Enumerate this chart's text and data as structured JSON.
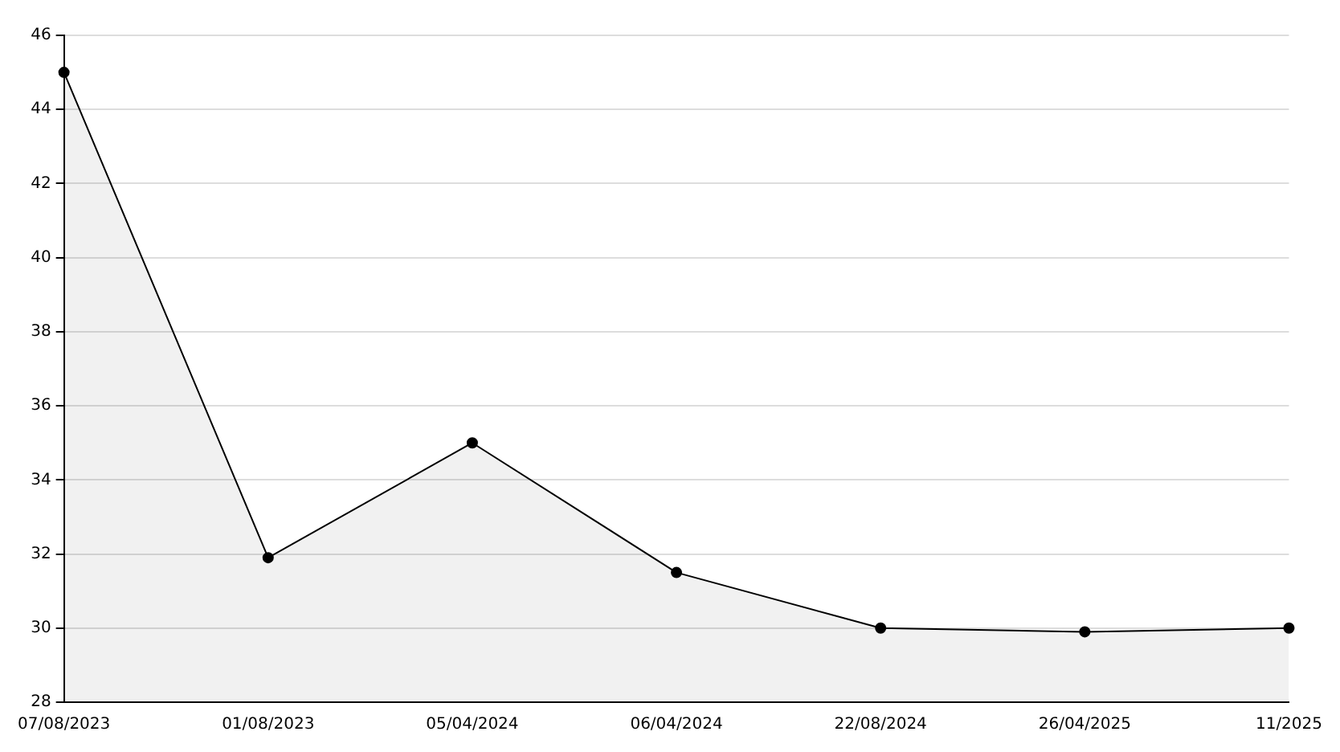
{
  "chart_data": {
    "type": "area",
    "categories": [
      "07/08/2023",
      "01/08/2023",
      "05/04/2024",
      "06/04/2024",
      "22/08/2024",
      "26/04/2025",
      "11/2025"
    ],
    "series": [
      {
        "color": "#000000",
        "values": [
          45,
          31.9,
          35,
          31.5,
          30,
          29.9,
          30
        ]
      }
    ],
    "ylim": [
      28,
      46
    ],
    "yticks": [
      28,
      30,
      32,
      34,
      36,
      38,
      40,
      42,
      44,
      46
    ],
    "grid": "y",
    "legend": false,
    "marker": "circle",
    "line_style": "solid"
  }
}
